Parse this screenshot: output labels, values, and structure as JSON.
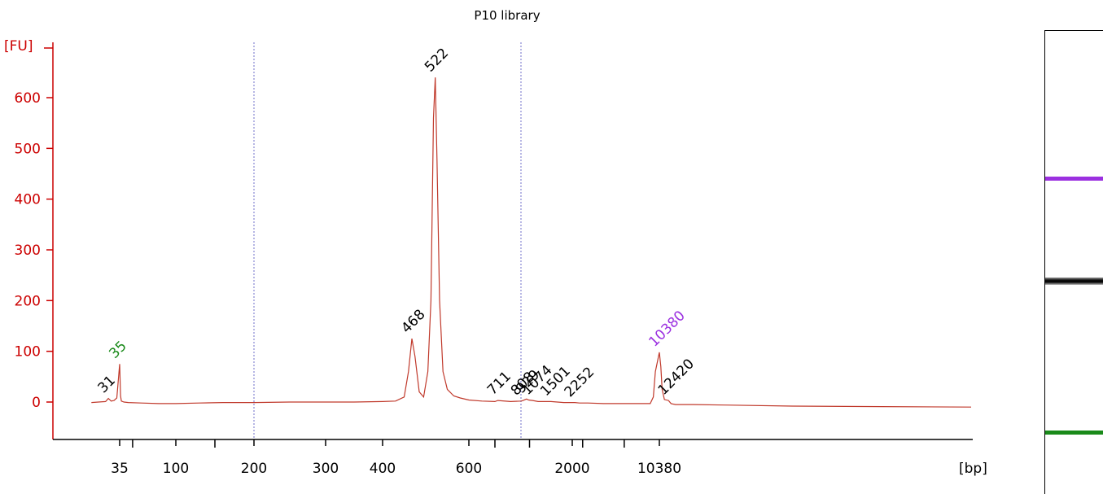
{
  "chart_data": {
    "type": "line",
    "title": "P10 library",
    "ylabel": "[FU]",
    "xlabel": "[bp]",
    "ylim": [
      -70,
      680
    ],
    "yticks": [
      0,
      100,
      200,
      300,
      400,
      500,
      600
    ],
    "xtick_labels": [
      {
        "text": "35",
        "x": 35
      },
      {
        "text": "100",
        "x": 100
      },
      {
        "text": "200",
        "x": 200
      },
      {
        "text": "300",
        "x": 300
      },
      {
        "text": "400",
        "x": 400
      },
      {
        "text": "600",
        "x": 600
      },
      {
        "text": "2000",
        "x": 2000
      },
      {
        "text": "10380",
        "x": 10380
      }
    ],
    "minor_ticks_bp": [
      50,
      150,
      700,
      1000,
      3000,
      7000
    ],
    "series": [
      {
        "color": "#c0392b",
        "points": [
          [
            25,
            -1
          ],
          [
            30,
            1
          ],
          [
            31,
            7
          ],
          [
            32,
            2
          ],
          [
            33,
            3
          ],
          [
            34,
            8
          ],
          [
            35,
            75
          ],
          [
            36,
            12
          ],
          [
            37,
            2
          ],
          [
            40,
            0
          ],
          [
            45,
            -1
          ],
          [
            60,
            -2
          ],
          [
            80,
            -3
          ],
          [
            100,
            -3
          ],
          [
            130,
            -2
          ],
          [
            160,
            -1
          ],
          [
            200,
            -1
          ],
          [
            250,
            0
          ],
          [
            300,
            0
          ],
          [
            350,
            0
          ],
          [
            400,
            1
          ],
          [
            430,
            2
          ],
          [
            450,
            10
          ],
          [
            460,
            60
          ],
          [
            468,
            125
          ],
          [
            475,
            90
          ],
          [
            485,
            20
          ],
          [
            495,
            10
          ],
          [
            505,
            60
          ],
          [
            512,
            200
          ],
          [
            518,
            560
          ],
          [
            522,
            640
          ],
          [
            526,
            480
          ],
          [
            532,
            200
          ],
          [
            540,
            60
          ],
          [
            550,
            25
          ],
          [
            565,
            12
          ],
          [
            580,
            8
          ],
          [
            600,
            4
          ],
          [
            650,
            2
          ],
          [
            700,
            1
          ],
          [
            711,
            3
          ],
          [
            760,
            1
          ],
          [
            808,
            2
          ],
          [
            850,
            3
          ],
          [
            929,
            6
          ],
          [
            980,
            4
          ],
          [
            1074,
            3
          ],
          [
            1200,
            1
          ],
          [
            1501,
            1
          ],
          [
            1800,
            -1
          ],
          [
            2252,
            -1
          ],
          [
            2700,
            -2
          ],
          [
            3500,
            -2
          ],
          [
            5000,
            -3
          ],
          [
            7000,
            -3
          ],
          [
            9500,
            -3
          ],
          [
            9800,
            10
          ],
          [
            10000,
            60
          ],
          [
            10380,
            98
          ],
          [
            10700,
            70
          ],
          [
            11000,
            25
          ],
          [
            11500,
            5
          ],
          [
            12420,
            3
          ],
          [
            13000,
            -3
          ],
          [
            14000,
            -5
          ],
          [
            18000,
            -5
          ],
          [
            25000,
            -6
          ],
          [
            40000,
            -8
          ],
          [
            60000,
            -9
          ],
          [
            80000,
            -10
          ]
        ]
      }
    ],
    "peaks": [
      {
        "text": "31",
        "x": 31,
        "y": 7,
        "color": "#000000"
      },
      {
        "text": "35",
        "x": 35,
        "y": 75,
        "color": "#1a8a1a"
      },
      {
        "text": "468",
        "x": 468,
        "y": 125,
        "color": "#000000"
      },
      {
        "text": "522",
        "x": 522,
        "y": 640,
        "color": "#000000"
      },
      {
        "text": "711",
        "x": 711,
        "y": 3,
        "color": "#000000"
      },
      {
        "text": "808",
        "x": 808,
        "y": 2,
        "color": "#000000"
      },
      {
        "text": "929",
        "x": 929,
        "y": 6,
        "color": "#000000"
      },
      {
        "text": "1074",
        "x": 1074,
        "y": 3,
        "color": "#000000"
      },
      {
        "text": "1501",
        "x": 1501,
        "y": 1,
        "color": "#000000"
      },
      {
        "text": "2252",
        "x": 2252,
        "y": -1,
        "color": "#000000"
      },
      {
        "text": "10380",
        "x": 10380,
        "y": 98,
        "color": "#9b30e0"
      },
      {
        "text": "12420",
        "x": 12420,
        "y": 3,
        "color": "#000000"
      }
    ],
    "vlines_bp": [
      200,
      800
    ],
    "grid": false,
    "legend": "none"
  },
  "gel": {
    "bands": [
      {
        "name": "upper-marker",
        "color": "#9b30e0"
      },
      {
        "name": "sample",
        "color": "#111111"
      },
      {
        "name": "lower-marker",
        "color": "#1a8a1a"
      }
    ]
  }
}
